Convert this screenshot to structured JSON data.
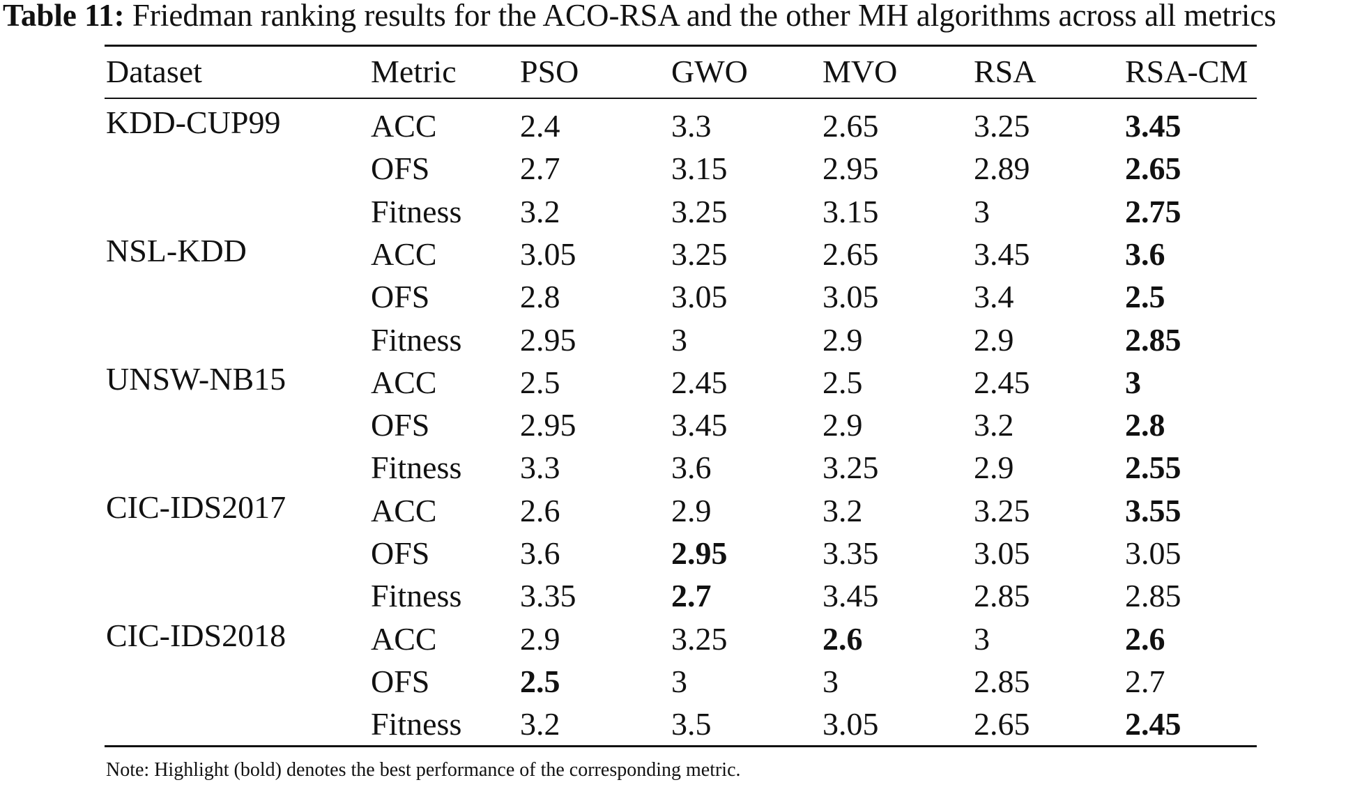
{
  "caption": {
    "label": "Table 11:",
    "text": "Friedman ranking results for the ACO-RSA and the other MH algorithms across all metrics"
  },
  "table": {
    "columns": [
      "Dataset",
      "Metric",
      "PSO",
      "GWO",
      "MVO",
      "RSA",
      "RSA-CM"
    ],
    "rows": [
      {
        "dataset": "KDD-CUP99",
        "metric": "ACC",
        "values": [
          "2.4",
          "3.3",
          "2.65",
          "3.25",
          "3.45"
        ],
        "bold": [
          4
        ]
      },
      {
        "dataset": "",
        "metric": "OFS",
        "values": [
          "2.7",
          "3.15",
          "2.95",
          "2.89",
          "2.65"
        ],
        "bold": [
          4
        ]
      },
      {
        "dataset": "",
        "metric": "Fitness",
        "values": [
          "3.2",
          "3.25",
          "3.15",
          "3",
          "2.75"
        ],
        "bold": [
          4
        ]
      },
      {
        "dataset": "NSL-KDD",
        "metric": "ACC",
        "values": [
          "3.05",
          "3.25",
          "2.65",
          "3.45",
          "3.6"
        ],
        "bold": [
          4
        ]
      },
      {
        "dataset": "",
        "metric": "OFS",
        "values": [
          "2.8",
          "3.05",
          "3.05",
          "3.4",
          "2.5"
        ],
        "bold": [
          4
        ]
      },
      {
        "dataset": "",
        "metric": "Fitness",
        "values": [
          "2.95",
          "3",
          "2.9",
          "2.9",
          "2.85"
        ],
        "bold": [
          4
        ]
      },
      {
        "dataset": "UNSW-NB15",
        "metric": "ACC",
        "values": [
          "2.5",
          "2.45",
          "2.5",
          "2.45",
          "3"
        ],
        "bold": [
          4
        ]
      },
      {
        "dataset": "",
        "metric": "OFS",
        "values": [
          "2.95",
          "3.45",
          "2.9",
          "3.2",
          "2.8"
        ],
        "bold": [
          4
        ]
      },
      {
        "dataset": "",
        "metric": "Fitness",
        "values": [
          "3.3",
          "3.6",
          "3.25",
          "2.9",
          "2.55"
        ],
        "bold": [
          4
        ]
      },
      {
        "dataset": "CIC-IDS2017",
        "metric": "ACC",
        "values": [
          "2.6",
          "2.9",
          "3.2",
          "3.25",
          "3.55"
        ],
        "bold": [
          4
        ]
      },
      {
        "dataset": "",
        "metric": "OFS",
        "values": [
          "3.6",
          "2.95",
          "3.35",
          "3.05",
          "3.05"
        ],
        "bold": [
          1
        ]
      },
      {
        "dataset": "",
        "metric": "Fitness",
        "values": [
          "3.35",
          "2.7",
          "3.45",
          "2.85",
          "2.85"
        ],
        "bold": [
          1
        ]
      },
      {
        "dataset": "CIC-IDS2018",
        "metric": "ACC",
        "values": [
          "2.9",
          "3.25",
          "2.6",
          "3",
          "2.6"
        ],
        "bold": [
          2,
          4
        ]
      },
      {
        "dataset": "",
        "metric": "OFS",
        "values": [
          "2.5",
          "3",
          "3",
          "2.85",
          "2.7"
        ],
        "bold": [
          0
        ]
      },
      {
        "dataset": "",
        "metric": "Fitness",
        "values": [
          "3.2",
          "3.5",
          "3.05",
          "2.65",
          "2.45"
        ],
        "bold": [
          4
        ]
      }
    ]
  },
  "note": "Note: Highlight (bold) denotes the best performance of the corresponding metric."
}
